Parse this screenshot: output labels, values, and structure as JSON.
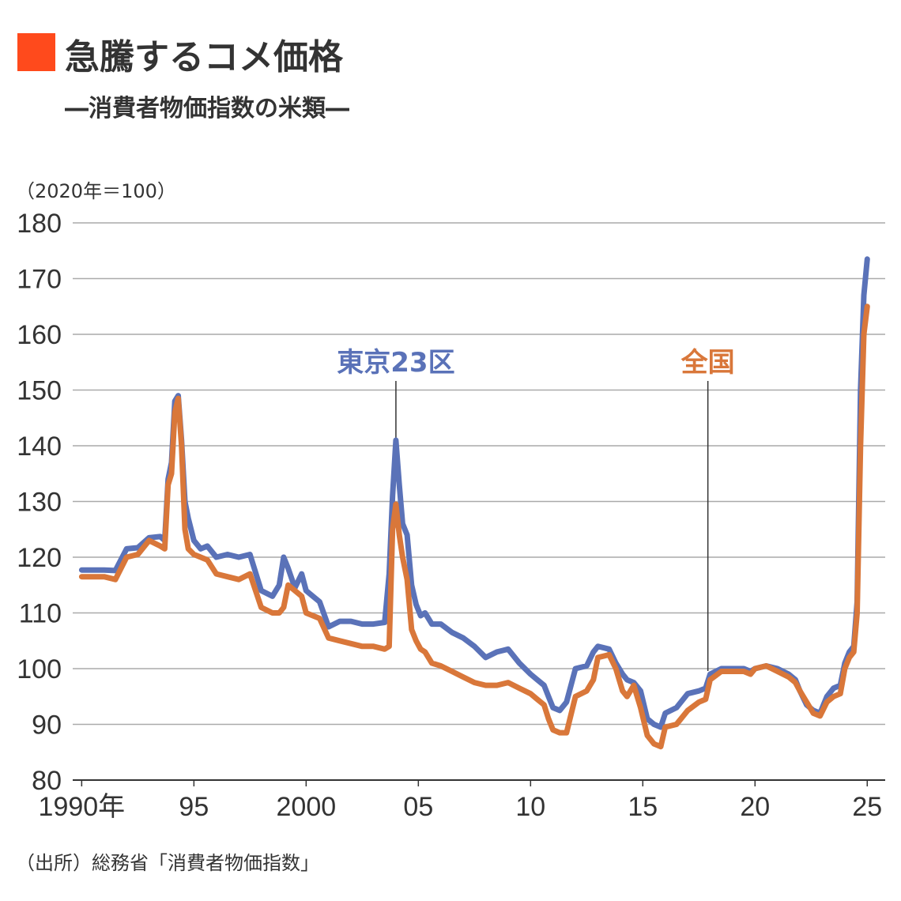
{
  "title": "急騰するコメ価格",
  "subtitle": "―消費者物価指数の米類―",
  "unit_note": "（2020年＝100）",
  "source": "（出所）総務省「消費者物価指数」",
  "colors": {
    "title_mark": "#ff4a1c",
    "tokyo": "#5a72b8",
    "national": "#d9773a",
    "text": "#333333",
    "grid": "#aaaaaa"
  },
  "chart_data": {
    "type": "line",
    "ylim": [
      80,
      180
    ],
    "xlim": [
      1989.6,
      2025.8
    ],
    "grid": true,
    "y_ticks": [
      80,
      90,
      100,
      110,
      120,
      130,
      140,
      150,
      160,
      170,
      180
    ],
    "x_ticks": [
      {
        "value": 1990,
        "label": "1990年"
      },
      {
        "value": 1995,
        "label": "95"
      },
      {
        "value": 2000,
        "label": "2000"
      },
      {
        "value": 2005,
        "label": "05"
      },
      {
        "value": 2010,
        "label": "10"
      },
      {
        "value": 2015,
        "label": "15"
      },
      {
        "value": 2020,
        "label": "20"
      },
      {
        "value": 2025,
        "label": "25"
      }
    ],
    "annotations": [
      {
        "series": 0,
        "text": "東京23区",
        "x": 2004.0,
        "y": 140
      },
      {
        "series": 1,
        "text": "全国",
        "x": 2017.9,
        "y": 99
      }
    ],
    "series": [
      {
        "name": "東京23区",
        "x": [
          1990.0,
          1991.0,
          1991.5,
          1992.0,
          1992.5,
          1993.0,
          1993.5,
          1993.7,
          1993.85,
          1994.0,
          1994.15,
          1994.3,
          1994.45,
          1994.6,
          1994.75,
          1995.0,
          1995.3,
          1995.6,
          1996.0,
          1996.5,
          1997.0,
          1997.5,
          1998.0,
          1998.5,
          1998.8,
          1999.0,
          1999.2,
          1999.5,
          1999.8,
          2000.0,
          2000.3,
          2000.6,
          2001.0,
          2001.5,
          2002.0,
          2002.5,
          2003.0,
          2003.5,
          2003.7,
          2003.85,
          2004.0,
          2004.15,
          2004.3,
          2004.5,
          2004.7,
          2004.9,
          2005.1,
          2005.3,
          2005.6,
          2006.0,
          2006.5,
          2007.0,
          2007.5,
          2008.0,
          2008.5,
          2009.0,
          2009.5,
          2010.0,
          2010.3,
          2010.6,
          2010.8,
          2011.0,
          2011.3,
          2011.6,
          2012.0,
          2012.5,
          2012.8,
          2013.0,
          2013.5,
          2013.8,
          2014.1,
          2014.3,
          2014.6,
          2014.9,
          2015.2,
          2015.5,
          2015.8,
          2016.0,
          2016.5,
          2017.0,
          2017.5,
          2017.8,
          2018.0,
          2018.5,
          2019.0,
          2019.5,
          2019.8,
          2020.0,
          2020.5,
          2021.0,
          2021.5,
          2021.8,
          2022.0,
          2022.3,
          2022.6,
          2022.9,
          2023.2,
          2023.5,
          2023.8,
          2024.0,
          2024.2,
          2024.4,
          2024.55,
          2024.7,
          2024.85,
          2025.0
        ],
        "values": [
          117.7,
          117.7,
          117.6,
          121.5,
          121.7,
          123.5,
          123.7,
          123.0,
          134.0,
          137.0,
          148.0,
          149.0,
          141.0,
          130.0,
          127.0,
          123.0,
          121.5,
          122.0,
          120.0,
          120.5,
          120.0,
          120.5,
          114.0,
          113.0,
          115.0,
          120.0,
          118.0,
          114.5,
          117.0,
          114.0,
          113.0,
          112.0,
          107.5,
          108.5,
          108.5,
          108.0,
          108.0,
          108.3,
          117.0,
          131.0,
          141.0,
          133.0,
          126.0,
          124.0,
          115.0,
          111.5,
          109.5,
          110.0,
          108.0,
          108.0,
          106.5,
          105.5,
          104.0,
          102.0,
          103.0,
          103.5,
          101.0,
          99.0,
          98.0,
          97.0,
          95.0,
          93.0,
          92.5,
          94.0,
          100.0,
          100.5,
          103.0,
          104.0,
          103.5,
          101.0,
          99.0,
          98.0,
          97.5,
          96.0,
          91.0,
          90.0,
          89.5,
          92.0,
          93.0,
          95.5,
          96.0,
          96.5,
          99.0,
          100.0,
          100.0,
          100.0,
          99.5,
          100.0,
          100.5,
          100.0,
          99.0,
          98.0,
          96.0,
          93.5,
          92.5,
          92.0,
          95.0,
          96.5,
          97.0,
          101.0,
          103.0,
          104.0,
          112.0,
          150.0,
          167.0,
          173.5
        ]
      },
      {
        "name": "全国",
        "x": [
          1990.0,
          1991.0,
          1991.5,
          1992.0,
          1992.5,
          1993.0,
          1993.5,
          1993.7,
          1993.85,
          1994.0,
          1994.15,
          1994.3,
          1994.45,
          1994.6,
          1994.75,
          1995.0,
          1995.3,
          1995.6,
          1996.0,
          1996.5,
          1997.0,
          1997.5,
          1998.0,
          1998.5,
          1998.8,
          1999.0,
          1999.2,
          1999.5,
          1999.8,
          2000.0,
          2000.3,
          2000.6,
          2001.0,
          2001.5,
          2002.0,
          2002.5,
          2003.0,
          2003.5,
          2003.7,
          2003.85,
          2004.0,
          2004.15,
          2004.3,
          2004.5,
          2004.7,
          2004.9,
          2005.1,
          2005.3,
          2005.6,
          2006.0,
          2006.5,
          2007.0,
          2007.5,
          2008.0,
          2008.5,
          2009.0,
          2009.5,
          2010.0,
          2010.3,
          2010.6,
          2010.8,
          2011.0,
          2011.3,
          2011.6,
          2012.0,
          2012.5,
          2012.8,
          2013.0,
          2013.5,
          2013.8,
          2014.1,
          2014.3,
          2014.6,
          2014.9,
          2015.2,
          2015.5,
          2015.8,
          2016.0,
          2016.5,
          2017.0,
          2017.5,
          2017.8,
          2018.0,
          2018.5,
          2019.0,
          2019.5,
          2019.8,
          2020.0,
          2020.5,
          2021.0,
          2021.5,
          2021.8,
          2022.0,
          2022.3,
          2022.6,
          2022.9,
          2023.2,
          2023.5,
          2023.8,
          2024.0,
          2024.2,
          2024.4,
          2024.55,
          2024.7,
          2024.85,
          2025.0
        ],
        "values": [
          116.5,
          116.5,
          116.0,
          120.0,
          120.5,
          123.0,
          122.0,
          121.5,
          133.0,
          135.0,
          146.0,
          148.5,
          140.0,
          125.0,
          121.5,
          120.5,
          120.0,
          119.5,
          117.0,
          116.5,
          116.0,
          117.0,
          111.0,
          110.0,
          110.0,
          111.0,
          115.0,
          114.0,
          113.0,
          110.0,
          109.5,
          109.0,
          105.5,
          105.0,
          104.5,
          104.0,
          104.0,
          103.5,
          104.0,
          125.0,
          129.5,
          124.0,
          120.0,
          116.0,
          107.0,
          105.0,
          103.5,
          103.0,
          101.0,
          100.5,
          99.5,
          98.5,
          97.5,
          97.0,
          97.0,
          97.5,
          96.5,
          95.5,
          94.5,
          93.5,
          91.0,
          89.0,
          88.5,
          88.5,
          95.0,
          96.0,
          98.0,
          102.0,
          102.5,
          100.0,
          96.0,
          95.0,
          97.0,
          93.0,
          88.0,
          86.5,
          86.0,
          89.5,
          90.0,
          92.5,
          94.0,
          94.5,
          98.0,
          99.5,
          99.5,
          99.5,
          99.0,
          100.0,
          100.5,
          99.5,
          98.5,
          97.5,
          96.0,
          94.0,
          92.0,
          91.5,
          94.0,
          95.0,
          95.5,
          100.0,
          102.0,
          103.0,
          110.0,
          140.0,
          160.0,
          165.0
        ]
      }
    ]
  }
}
